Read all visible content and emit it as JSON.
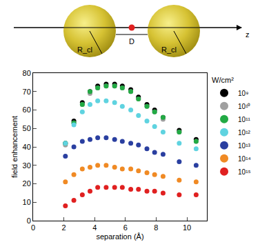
{
  "diagram": {
    "sphere_label": "R_cl",
    "gap_label": "D",
    "axis_label": "z"
  },
  "chart_data": {
    "type": "scatter",
    "x_label": "separation (Å)",
    "y_label": "field enhancement",
    "legend_title": "W/cm²",
    "legend": "right",
    "marker": "circle",
    "xlim": [
      0,
      11.3
    ],
    "xticks": [
      0,
      2,
      4,
      6,
      8,
      10
    ],
    "ylim": [
      0,
      80
    ],
    "yticks": [
      0,
      10,
      20,
      30,
      40,
      50,
      60,
      70,
      80
    ],
    "x": [
      2.1,
      2.65,
      3.2,
      3.7,
      4.2,
      4.75,
      5.3,
      5.8,
      6.35,
      6.85,
      7.4,
      7.9,
      8.45,
      9.5,
      10.6
    ],
    "series": [
      {
        "name": "10⁹",
        "color": "#000000",
        "values": [
          42,
          54,
          64,
          70,
          73,
          74,
          74,
          73,
          71,
          67,
          63,
          60,
          56,
          49,
          44
        ]
      },
      {
        "name": "10¹⁰",
        "color": "#a0a0a0",
        "values": [
          41,
          53,
          63,
          69,
          72,
          73,
          73,
          72,
          70,
          66,
          62,
          59,
          55,
          48,
          43
        ]
      },
      {
        "name": "10¹¹",
        "color": "#22aa44",
        "values": [
          42,
          53,
          63,
          70,
          72,
          73,
          73,
          72,
          70,
          66,
          62,
          59,
          56,
          48,
          43
        ]
      },
      {
        "name": "10¹²",
        "color": "#5fd3e0",
        "values": [
          42,
          52,
          59,
          63,
          65,
          65,
          64,
          62,
          60,
          57,
          54,
          51,
          48,
          42,
          39
        ]
      },
      {
        "name": "10¹³",
        "color": "#2a3fa0",
        "values": [
          35,
          40,
          43,
          44,
          45,
          45,
          44,
          43,
          42,
          41,
          39,
          37,
          36,
          32,
          30
        ]
      },
      {
        "name": "10¹⁴",
        "color": "#f08a24",
        "values": [
          21,
          25,
          28,
          29,
          30,
          30,
          29,
          28,
          28,
          27,
          26,
          25,
          24,
          22,
          21
        ]
      },
      {
        "name": "10¹⁵",
        "color": "#e02020",
        "values": [
          8,
          11,
          14,
          16,
          18,
          18,
          18,
          18,
          17,
          17,
          16,
          16,
          15,
          14,
          14
        ]
      }
    ]
  }
}
